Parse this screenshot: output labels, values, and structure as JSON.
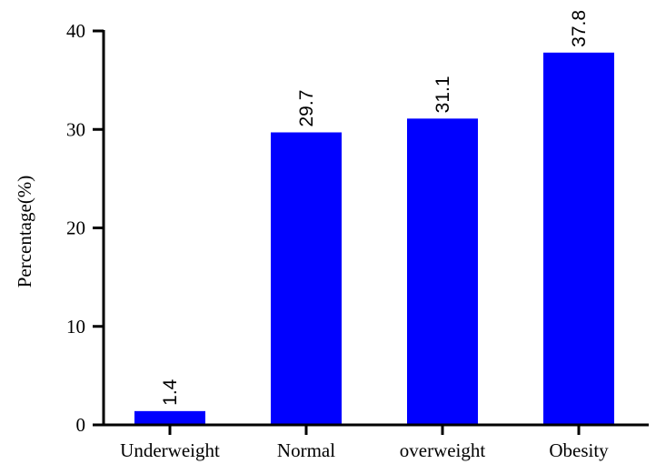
{
  "chart_data": {
    "type": "bar",
    "title": "",
    "xlabel": "",
    "ylabel": "Percentage(%)",
    "categories": [
      "Underweight",
      "Normal",
      "overweight",
      "Obesity"
    ],
    "values": [
      1.4,
      29.7,
      31.1,
      37.8
    ],
    "data_labels": [
      "1.4",
      "29.7",
      "31.1",
      "37.8"
    ],
    "ylim": [
      0,
      40
    ],
    "yticks": [
      0,
      10,
      20,
      30,
      40
    ],
    "ytick_labels": [
      "0",
      "10",
      "20",
      "30",
      "40"
    ],
    "grid": false,
    "legend": "none",
    "bar_color": "#0000ff",
    "axis_color": "#000000"
  }
}
